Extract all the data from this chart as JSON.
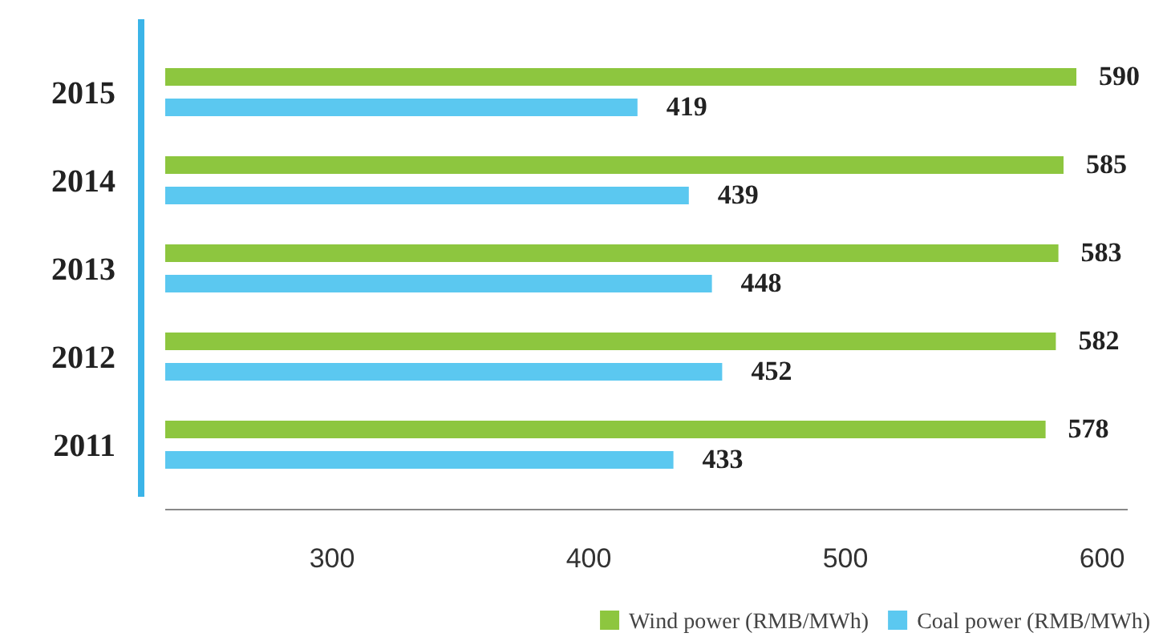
{
  "chart_data": {
    "type": "bar",
    "orientation": "horizontal",
    "categories": [
      "2015",
      "2014",
      "2013",
      "2012",
      "2011"
    ],
    "series": [
      {
        "name": "Wind power (RMB/MWh)",
        "color": "#8dc63f",
        "values": [
          590,
          585,
          583,
          582,
          578
        ]
      },
      {
        "name": "Coal power (RMB/MWh)",
        "color": "#5bc8f0",
        "values": [
          419,
          439,
          448,
          452,
          433
        ]
      }
    ],
    "xlim": [
      235,
      610
    ],
    "xticks": [
      300,
      400,
      500,
      600
    ],
    "data_labels": true,
    "legend": "bottom right",
    "grid": false
  }
}
